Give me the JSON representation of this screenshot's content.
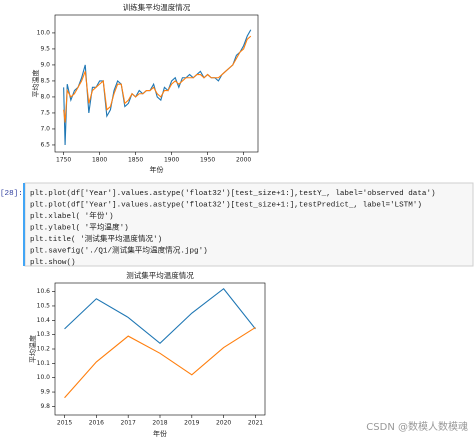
{
  "chart_data": [
    {
      "type": "line",
      "title": "训练集平均温度情况",
      "x_label": "年份",
      "y_label": "平均温度",
      "x": [
        1750,
        1752,
        1755,
        1760,
        1765,
        1770,
        1775,
        1780,
        1785,
        1790,
        1795,
        1800,
        1805,
        1810,
        1815,
        1820,
        1825,
        1830,
        1835,
        1840,
        1845,
        1850,
        1855,
        1860,
        1865,
        1870,
        1875,
        1880,
        1885,
        1890,
        1895,
        1900,
        1905,
        1910,
        1915,
        1920,
        1925,
        1930,
        1935,
        1940,
        1945,
        1950,
        1955,
        1960,
        1965,
        1970,
        1975,
        1980,
        1985,
        1990,
        1995,
        2000,
        2005,
        2010
      ],
      "series": [
        {
          "color": "#1f77b4",
          "values": [
            8.3,
            6.5,
            8.4,
            7.9,
            8.2,
            8.3,
            8.6,
            9.0,
            7.5,
            8.3,
            8.3,
            8.5,
            8.5,
            7.4,
            7.6,
            8.2,
            8.5,
            8.4,
            7.7,
            7.8,
            8.1,
            8.0,
            8.2,
            8.1,
            8.2,
            8.2,
            8.4,
            8.0,
            7.9,
            8.3,
            8.2,
            8.5,
            8.6,
            8.3,
            8.6,
            8.6,
            8.7,
            8.6,
            8.7,
            8.8,
            8.6,
            8.7,
            8.6,
            8.6,
            8.5,
            8.7,
            8.8,
            8.9,
            9.0,
            9.3,
            9.4,
            9.6,
            9.9,
            10.1
          ]
        },
        {
          "color": "#ff7f0e",
          "values": [
            7.6,
            7.2,
            8.2,
            8.0,
            8.1,
            8.3,
            8.5,
            8.8,
            7.8,
            8.2,
            8.3,
            8.4,
            8.5,
            7.6,
            7.7,
            8.1,
            8.4,
            8.4,
            7.8,
            7.9,
            8.1,
            8.0,
            8.1,
            8.1,
            8.2,
            8.2,
            8.3,
            8.1,
            8.0,
            8.2,
            8.2,
            8.4,
            8.5,
            8.4,
            8.5,
            8.6,
            8.6,
            8.6,
            8.7,
            8.7,
            8.6,
            8.7,
            8.6,
            8.6,
            8.6,
            8.7,
            8.8,
            8.9,
            9.0,
            9.2,
            9.4,
            9.5,
            9.8,
            9.9
          ]
        }
      ],
      "xlim": [
        1738,
        2020
      ],
      "xticks": [
        1750,
        1800,
        1850,
        1900,
        1950,
        2000
      ],
      "ylim": [
        6.28,
        10.56
      ],
      "yticks": [
        {
          "value": 6.5,
          "label": "6.5"
        },
        {
          "value": 7,
          "label": "7.0"
        },
        {
          "value": 7.5,
          "label": "7.5"
        },
        {
          "value": 8,
          "label": "8.0"
        },
        {
          "value": 8.5,
          "label": "8.5"
        },
        {
          "value": 9,
          "label": "9.0"
        },
        {
          "value": 9.5,
          "label": "9.5"
        },
        {
          "value": 10,
          "label": "10.0"
        }
      ]
    },
    {
      "type": "line",
      "title": "测试集平均温度情况",
      "x_label": "年份",
      "y_label": "平均温度",
      "x": [
        2015,
        2016,
        2017,
        2018,
        2019,
        2020,
        2021
      ],
      "series": [
        {
          "color": "#1f77b4",
          "values": [
            10.34,
            10.55,
            10.42,
            10.24,
            10.45,
            10.62,
            10.34
          ]
        },
        {
          "color": "#ff7f0e",
          "values": [
            9.86,
            10.11,
            10.29,
            10.17,
            10.02,
            10.21,
            10.35
          ]
        }
      ],
      "xlim": [
        2014.7,
        2021.3
      ],
      "xticks": [
        2015,
        2016,
        2017,
        2018,
        2019,
        2020,
        2021
      ],
      "ylim": [
        9.74,
        10.66
      ],
      "yticks": [
        9.8,
        9.9,
        {
          "value": 10,
          "label": "10.0"
        },
        10.1,
        10.2,
        10.3,
        10.4,
        10.5,
        10.6
      ]
    }
  ],
  "code_cell": {
    "prompt": "[28]:",
    "lines": [
      "plt.plot(df['Year'].values.astype('float32')[test_size+1:],testY_, label='observed data')",
      "plt.plot(df['Year'].values.astype('float32')[test_size+1:],testPredict_, label='LSTM')",
      "plt.xlabel( '年份')",
      "plt.ylabel( '平均温度')",
      "plt.title( '测试集平均温度情况')",
      "plt.savefig('./Q1/测试集平均温度情况.jpg')",
      "plt.show()"
    ]
  },
  "watermark": "CSDN @数模人数模魂"
}
